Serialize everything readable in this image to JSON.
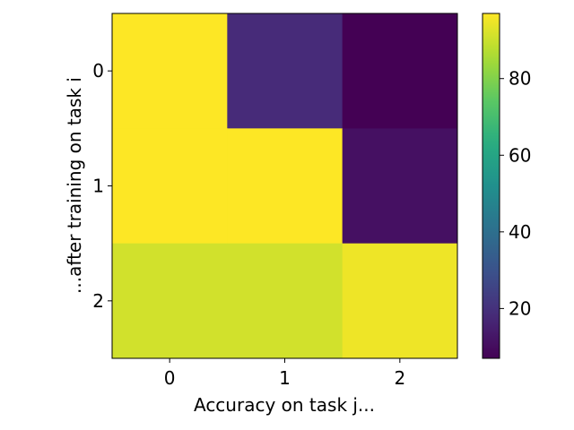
{
  "chart_data": {
    "type": "heatmap",
    "title": "",
    "xlabel": "Accuracy on task j...",
    "ylabel": "...after training on task i",
    "x_categories": [
      "0",
      "1",
      "2"
    ],
    "y_categories": [
      "0",
      "1",
      "2"
    ],
    "values": [
      [
        97,
        18,
        7
      ],
      [
        97,
        97,
        11
      ],
      [
        91,
        91,
        95
      ]
    ],
    "colorbar": {
      "range": [
        7,
        97
      ],
      "ticks": [
        "20",
        "40",
        "60",
        "80"
      ],
      "colormap": "viridis"
    },
    "grid": false,
    "legend": "none"
  }
}
